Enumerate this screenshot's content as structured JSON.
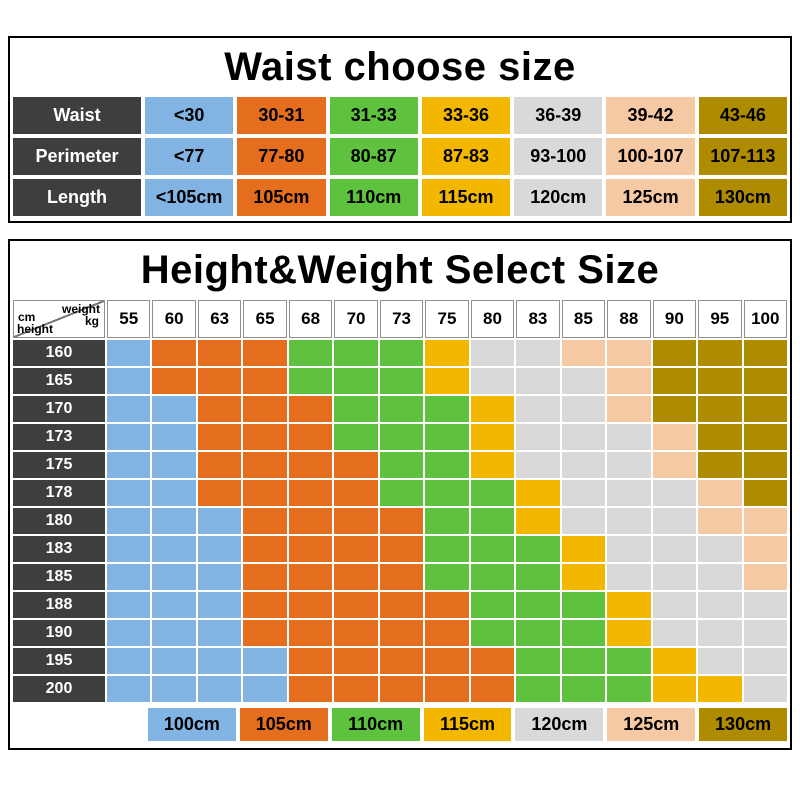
{
  "colors": {
    "blue": "#82B4E3",
    "orange": "#E56E1E",
    "green": "#5EC23F",
    "yellow": "#F3B700",
    "gray": "#D9D9D9",
    "peach": "#F5C9A3",
    "gold": "#AF8B00",
    "header_bg": "#3E3E3E",
    "header_text": "#FFFFFF"
  },
  "chart_data": [
    {
      "type": "table",
      "title": "Waist choose size",
      "rows": [
        {
          "label": "Waist",
          "cells": [
            {
              "text": "<30",
              "color": "blue"
            },
            {
              "text": "30-31",
              "color": "orange"
            },
            {
              "text": "31-33",
              "color": "green"
            },
            {
              "text": "33-36",
              "color": "yellow"
            },
            {
              "text": "36-39",
              "color": "gray"
            },
            {
              "text": "39-42",
              "color": "peach"
            },
            {
              "text": "43-46",
              "color": "gold"
            }
          ]
        },
        {
          "label": "Perimeter",
          "cells": [
            {
              "text": "<77",
              "color": "blue"
            },
            {
              "text": "77-80",
              "color": "orange"
            },
            {
              "text": "80-87",
              "color": "green"
            },
            {
              "text": "87-83",
              "color": "yellow"
            },
            {
              "text": "93-100",
              "color": "gray"
            },
            {
              "text": "100-107",
              "color": "peach"
            },
            {
              "text": "107-113",
              "color": "gold"
            }
          ]
        },
        {
          "label": "Length",
          "cells": [
            {
              "text": "<105cm",
              "color": "blue"
            },
            {
              "text": "105cm",
              "color": "orange"
            },
            {
              "text": "110cm",
              "color": "green"
            },
            {
              "text": "115cm",
              "color": "yellow"
            },
            {
              "text": "120cm",
              "color": "gray"
            },
            {
              "text": "125cm",
              "color": "peach"
            },
            {
              "text": "130cm",
              "color": "gold"
            }
          ]
        }
      ]
    },
    {
      "type": "heatmap",
      "title": "Height&Weight Select Size",
      "corner": {
        "weight": "weight",
        "kg": "kg",
        "cm": "cm",
        "height": "height"
      },
      "weights": [
        "55",
        "60",
        "63",
        "65",
        "68",
        "70",
        "73",
        "75",
        "80",
        "83",
        "85",
        "88",
        "90",
        "95",
        "100"
      ],
      "heights": [
        "160",
        "165",
        "170",
        "173",
        "175",
        "178",
        "180",
        "183",
        "185",
        "188",
        "190",
        "195",
        "200"
      ],
      "size_by_code": {
        "B": "100cm",
        "O": "105cm",
        "G": "110cm",
        "Y": "115cm",
        "S": "120cm",
        "P": "125cm",
        "D": "130cm"
      },
      "color_by_code": {
        "B": "blue",
        "O": "orange",
        "G": "green",
        "Y": "yellow",
        "S": "gray",
        "P": "peach",
        "D": "gold"
      },
      "matrix": [
        "BOOOGGGYSSPPDDD",
        "BOOOGGGYSSSPDDD",
        "BBOOOGGGYSSPDDD",
        "BBOOOGGGYSSSPDD",
        "BBOOOOGGYSSSPDD",
        "BBOOOOGGGYSSSPD",
        "BBBOOOOGGYSSSPP",
        "BBBOOOOGGGYSSSP",
        "BBBOOOOGGGYSSSP",
        "BBBOOOOOGGGYSSS",
        "BBBOOOOOGGGYSSS",
        "BBBBOOOOOGGGYSS",
        "BBBBOOOOOGGGYYS"
      ],
      "legend": [
        {
          "text": "100cm",
          "color": "blue"
        },
        {
          "text": "105cm",
          "color": "orange"
        },
        {
          "text": "110cm",
          "color": "green"
        },
        {
          "text": "115cm",
          "color": "yellow"
        },
        {
          "text": "120cm",
          "color": "gray"
        },
        {
          "text": "125cm",
          "color": "peach"
        },
        {
          "text": "130cm",
          "color": "gold"
        }
      ]
    }
  ]
}
